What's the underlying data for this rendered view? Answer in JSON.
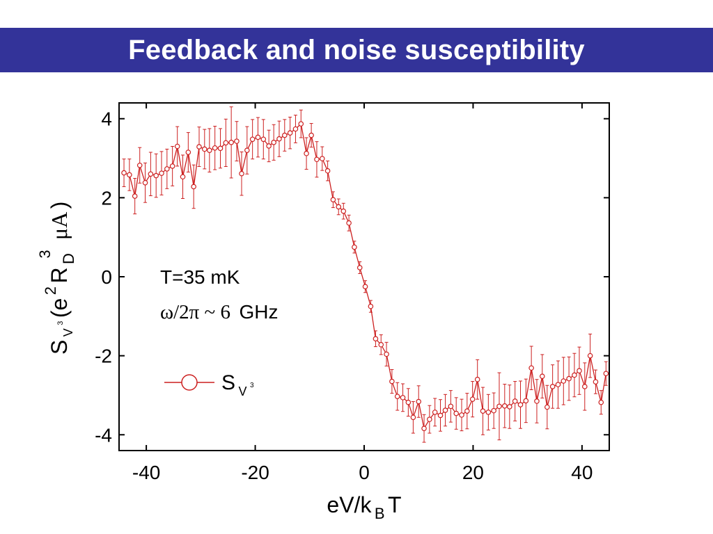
{
  "slide": {
    "title": "Feedback and noise susceptibility"
  },
  "colors": {
    "title_bar": "#333399",
    "series": "#cc1f1f",
    "text": "#000000"
  },
  "chart_data": {
    "type": "scatter",
    "xlabel_parts": {
      "main": "eV/k",
      "sub": "B",
      "tail": "T"
    },
    "ylabel_parts": {
      "s": "S",
      "s_sub": "V",
      "s_sup": "3",
      "open": "(e",
      "e_sup": "2",
      "r": "R",
      "r_sub": "D",
      "r_sup": "3",
      "mu": "μA",
      "close": ")"
    },
    "xlim": [
      -45,
      45
    ],
    "ylim": [
      -4.4,
      4.4
    ],
    "xticks": [
      -40,
      -20,
      0,
      20,
      40
    ],
    "yticks": [
      -4,
      -2,
      0,
      2,
      4
    ],
    "annotations": {
      "temperature": "T=35 mK",
      "frequency_symbol": "ω/2π ~ 6",
      "frequency_unit": "GHz"
    },
    "legend": {
      "position": "bottom-left",
      "label": "S",
      "label_sub": "V",
      "label_sup": "3"
    },
    "grid": false,
    "series": [
      {
        "name": "SV3",
        "marker": "open-circle",
        "x": [
          -44.1,
          -43.1,
          -42.1,
          -41.2,
          -40.2,
          -39.2,
          -38.2,
          -37.2,
          -36.2,
          -35.2,
          -34.3,
          -33.3,
          -32.3,
          -31.3,
          -30.3,
          -29.3,
          -28.4,
          -27.4,
          -26.4,
          -25.4,
          -24.4,
          -23.4,
          -22.5,
          -21.5,
          -20.5,
          -19.5,
          -18.5,
          -17.5,
          -16.6,
          -15.6,
          -14.6,
          -13.6,
          -12.6,
          -11.6,
          -10.6,
          -9.7,
          -8.7,
          -7.7,
          -6.7,
          -5.7,
          -4.7,
          -3.8,
          -2.8,
          -1.8,
          -0.8,
          0.2,
          1.2,
          2.1,
          3.1,
          4.1,
          5.1,
          6.1,
          7.1,
          8.1,
          9.0,
          10.0,
          11.0,
          12.0,
          13.0,
          14.0,
          14.9,
          15.9,
          16.9,
          17.9,
          18.9,
          19.9,
          20.8,
          21.8,
          22.8,
          23.8,
          24.8,
          25.8,
          26.7,
          27.7,
          28.7,
          29.7,
          30.7,
          31.7,
          32.7,
          33.6,
          34.6,
          35.6,
          36.6,
          37.6,
          38.6,
          39.5,
          40.5,
          41.5,
          42.5,
          43.5,
          44.4
        ],
        "y": [
          2.63,
          2.58,
          2.04,
          2.82,
          2.38,
          2.6,
          2.56,
          2.62,
          2.73,
          2.8,
          3.3,
          2.53,
          3.15,
          2.28,
          3.29,
          3.23,
          3.2,
          3.26,
          3.25,
          3.39,
          3.4,
          3.43,
          2.61,
          3.2,
          3.48,
          3.53,
          3.48,
          3.31,
          3.4,
          3.49,
          3.58,
          3.64,
          3.74,
          3.87,
          3.12,
          3.58,
          2.97,
          2.99,
          2.68,
          1.95,
          1.77,
          1.66,
          1.36,
          0.75,
          0.23,
          -0.25,
          -0.75,
          -1.57,
          -1.72,
          -1.96,
          -2.65,
          -3.03,
          -3.06,
          -3.18,
          -3.56,
          -3.16,
          -3.84,
          -3.61,
          -3.43,
          -3.51,
          -3.38,
          -3.28,
          -3.46,
          -3.5,
          -3.4,
          -3.1,
          -2.6,
          -3.4,
          -3.43,
          -3.39,
          -3.28,
          -3.27,
          -3.29,
          -3.15,
          -3.24,
          -3.14,
          -2.31,
          -3.15,
          -2.52,
          -3.3,
          -2.78,
          -2.73,
          -2.64,
          -2.58,
          -2.49,
          -2.38,
          -2.78,
          -2.0,
          -2.66,
          -3.18,
          -2.45
        ],
        "err": [
          0.35,
          0.4,
          0.45,
          0.45,
          0.5,
          0.55,
          0.55,
          0.55,
          0.5,
          0.5,
          0.5,
          0.55,
          0.5,
          0.55,
          0.5,
          0.5,
          0.55,
          0.55,
          0.5,
          0.6,
          0.9,
          0.5,
          0.55,
          0.6,
          0.5,
          0.5,
          0.5,
          0.4,
          0.45,
          0.45,
          0.4,
          0.4,
          0.35,
          0.35,
          0.4,
          0.3,
          0.45,
          0.3,
          0.25,
          0.2,
          0.2,
          0.2,
          0.2,
          0.15,
          0.15,
          0.15,
          0.15,
          0.2,
          0.25,
          0.3,
          0.3,
          0.35,
          0.35,
          0.35,
          0.4,
          0.4,
          0.35,
          0.35,
          0.35,
          0.4,
          0.4,
          0.4,
          0.4,
          0.4,
          0.45,
          0.45,
          0.5,
          0.6,
          0.45,
          0.45,
          0.85,
          0.55,
          0.55,
          0.5,
          0.6,
          0.55,
          0.55,
          0.55,
          0.55,
          0.55,
          0.55,
          0.6,
          0.6,
          0.55,
          0.55,
          0.6,
          0.6,
          0.55,
          0.3,
          0.3,
          0.3
        ]
      }
    ]
  }
}
